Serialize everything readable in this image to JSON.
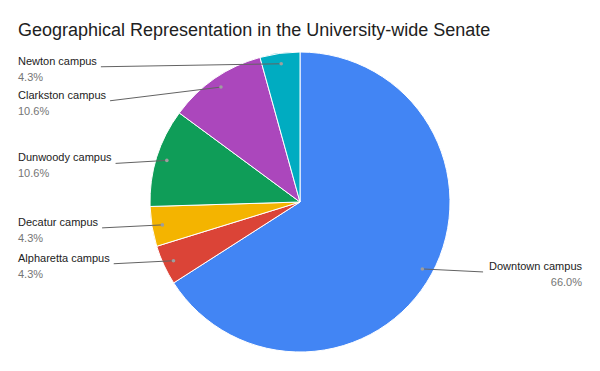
{
  "chart_data": {
    "type": "pie",
    "title": "Geographical Representation in the University-wide Senate",
    "categories": [
      "Downtown campus",
      "Alpharetta campus",
      "Decatur campus",
      "Dunwoody campus",
      "Clarkston campus",
      "Newton campus"
    ],
    "values": [
      66.0,
      4.3,
      4.3,
      10.6,
      10.6,
      4.3
    ],
    "value_labels": [
      "66.0%",
      "4.3%",
      "4.3%",
      "10.6%",
      "10.6%",
      "4.3%"
    ],
    "colors": [
      "#4285f4",
      "#db4437",
      "#f4b400",
      "#0f9d58",
      "#ab47bc",
      "#00acc1"
    ],
    "data_labels": true
  }
}
